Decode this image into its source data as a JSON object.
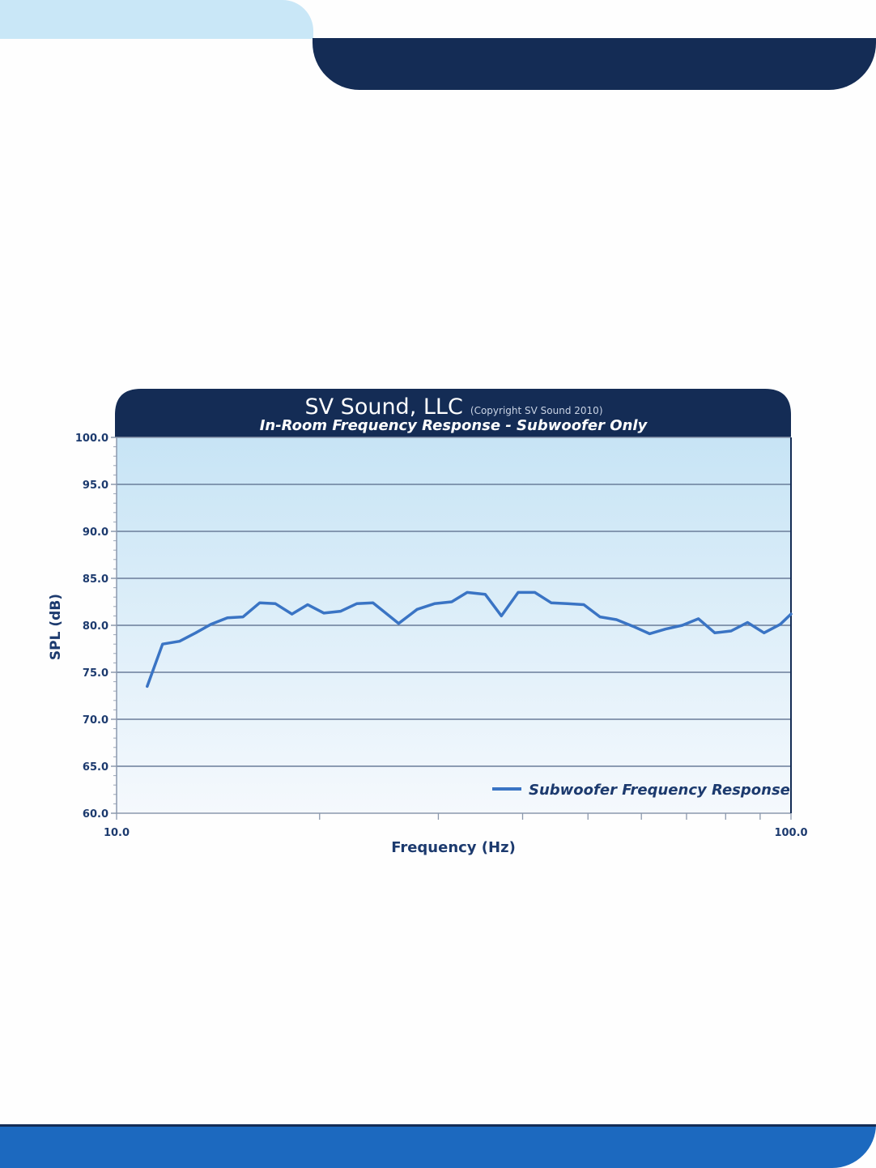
{
  "colors": {
    "page_background": "#fefefe",
    "header_light": "#c9e7f7",
    "header_dark": "#142c55",
    "footer": "#1c69bf",
    "series_line": "#3a74c4",
    "axis_text": "#1c3a6e"
  },
  "chart_data": {
    "type": "line",
    "title": "SV Sound, LLC",
    "copyright": "(Copyright SV Sound 2010)",
    "subtitle": "In-Room Frequency Response - Subwoofer Only",
    "xlabel": "Frequency (Hz)",
    "ylabel": "SPL (dB)",
    "x_scale": "log",
    "xlim": [
      10,
      100
    ],
    "ylim": [
      60,
      100
    ],
    "x_tick_labels": [
      "10.0",
      "100.0"
    ],
    "y_tick_labels": [
      "100.0",
      "95.0",
      "90.0",
      "85.0",
      "80.0",
      "75.0",
      "70.0",
      "65.0",
      "60.0"
    ],
    "grid": true,
    "legend_position": "bottom-right",
    "series": [
      {
        "name": "Subwoofer Frequency Response",
        "color": "#3a74c4",
        "x": [
          11.1,
          11.7,
          12.4,
          13.1,
          13.8,
          14.6,
          15.4,
          16.3,
          17.2,
          18.2,
          19.2,
          20.3,
          21.5,
          22.7,
          24.0,
          26.2,
          27.9,
          29.6,
          31.4,
          33.1,
          35.2,
          37.2,
          39.4,
          41.7,
          44.1,
          46.6,
          49.3,
          52.1,
          55.1,
          58.3,
          61.7,
          65.2,
          69.0,
          72.9,
          77.1,
          81.5,
          86.2,
          91.2,
          96.4,
          100.0
        ],
        "y": [
          73.5,
          78.0,
          78.3,
          79.2,
          80.1,
          80.8,
          80.9,
          82.4,
          82.3,
          81.2,
          82.2,
          81.3,
          81.5,
          82.3,
          82.4,
          80.2,
          81.7,
          82.3,
          82.5,
          83.5,
          83.3,
          81.0,
          83.5,
          83.5,
          82.4,
          82.3,
          82.2,
          80.9,
          80.6,
          79.9,
          79.1,
          79.6,
          80.0,
          80.7,
          79.2,
          79.4,
          80.3,
          79.2,
          80.1,
          81.2
        ]
      }
    ]
  }
}
